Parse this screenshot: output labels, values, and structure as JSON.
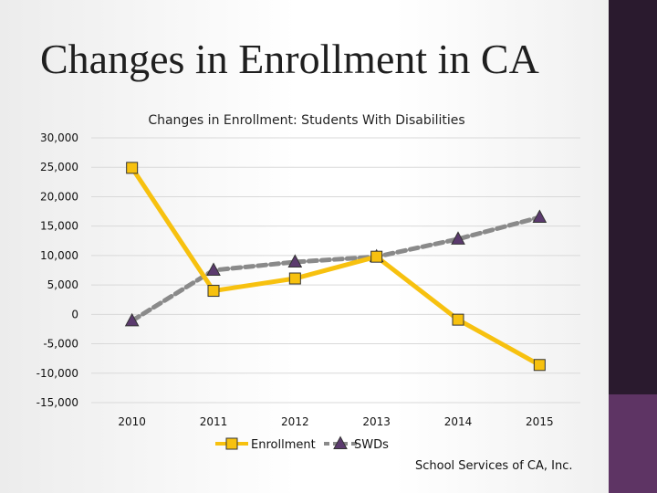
{
  "slide": {
    "title": "Changes in Enrollment in CA",
    "footer": "School Services of CA, Inc."
  },
  "colors": {
    "enrollment": "#f7c10f",
    "swds": "#8a8a8a",
    "swds_marker": "#5b3a6e",
    "sidebar_dark": "#2a1a2e",
    "sidebar_accent": "#5e3464"
  },
  "chart_data": {
    "type": "line",
    "title": "Changes in Enrollment: Students With Disabilities",
    "categories": [
      "2010",
      "2011",
      "2012",
      "2013",
      "2014",
      "2015"
    ],
    "ylim": [
      -15000,
      30000
    ],
    "yticks": [
      30000,
      25000,
      20000,
      15000,
      10000,
      5000,
      0,
      -5000,
      -10000,
      -15000
    ],
    "ytick_labels": [
      "30,000",
      "25,000",
      "20,000",
      "15,000",
      "10,000",
      "5,000",
      "0",
      "-5,000",
      "-10,000",
      "-15,000"
    ],
    "grid": true,
    "legend_position": "bottom",
    "series": [
      {
        "name": "Enrollment",
        "values": [
          24900,
          4000,
          6100,
          9800,
          -900,
          -8600
        ],
        "marker": "square",
        "line": "solid"
      },
      {
        "name": "SWDs",
        "values": [
          -1100,
          7500,
          8900,
          9800,
          12800,
          16500
        ],
        "marker": "triangle",
        "line": "dashed"
      }
    ]
  }
}
